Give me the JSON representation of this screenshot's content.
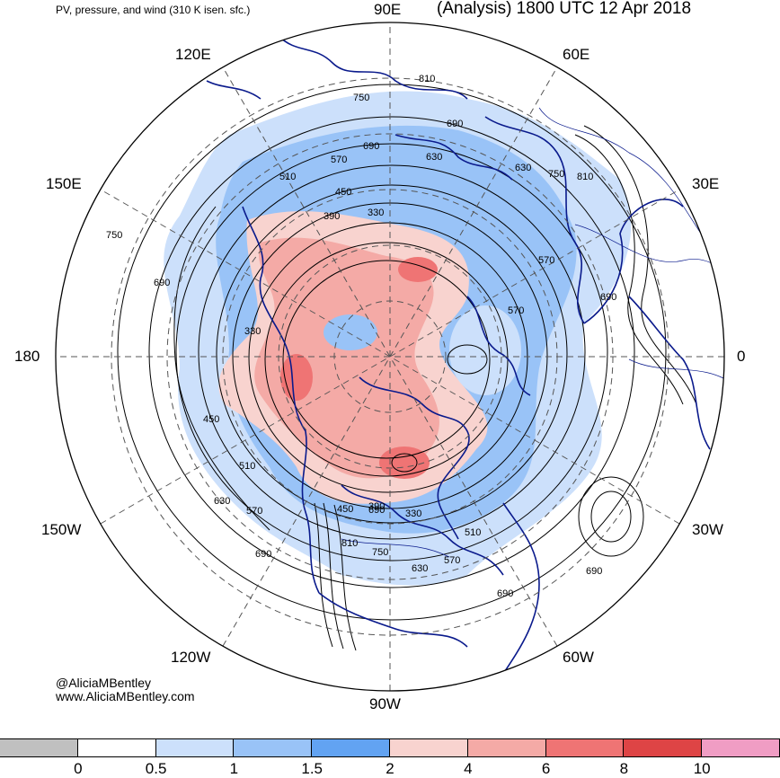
{
  "title": {
    "left": "PV, pressure, and wind (310 K isen. sfc.)",
    "right": "(Analysis) 1800 UTC 12 Apr 2018"
  },
  "credit": {
    "handle": "@AliciaMBentley",
    "url": "www.AliciaMBentley.com"
  },
  "longitude_labels": [
    "90E",
    "60E",
    "30E",
    "0",
    "30W",
    "60W",
    "90W",
    "120W",
    "150W",
    "180",
    "150E",
    "120E"
  ],
  "contour_labels": [
    "810",
    "750",
    "690",
    "690",
    "630",
    "570",
    "510",
    "450",
    "390",
    "330",
    "750",
    "690",
    "330",
    "450",
    "510",
    "630",
    "570",
    "690",
    "450",
    "390",
    "330",
    "810",
    "750",
    "630",
    "570",
    "510",
    "690",
    "690",
    "630",
    "750",
    "810",
    "570",
    "690",
    "570",
    "690"
  ],
  "colorbar": {
    "labels": [
      "0",
      "0.5",
      "1",
      "1.5",
      "2",
      "4",
      "6",
      "8",
      "10"
    ],
    "colors": [
      "#c0c0c0",
      "#ffffff",
      "#cce0fb",
      "#99c3f7",
      "#62a3f2",
      "#f8d3cf",
      "#f4aaa6",
      "#ef7474",
      "#de4445",
      "#f09dc4"
    ]
  },
  "colors": {
    "coastline": "#0a1a8c",
    "contour": "#000000",
    "pv_low": "#99c3f7",
    "pv_high": "#f4aaa6"
  }
}
